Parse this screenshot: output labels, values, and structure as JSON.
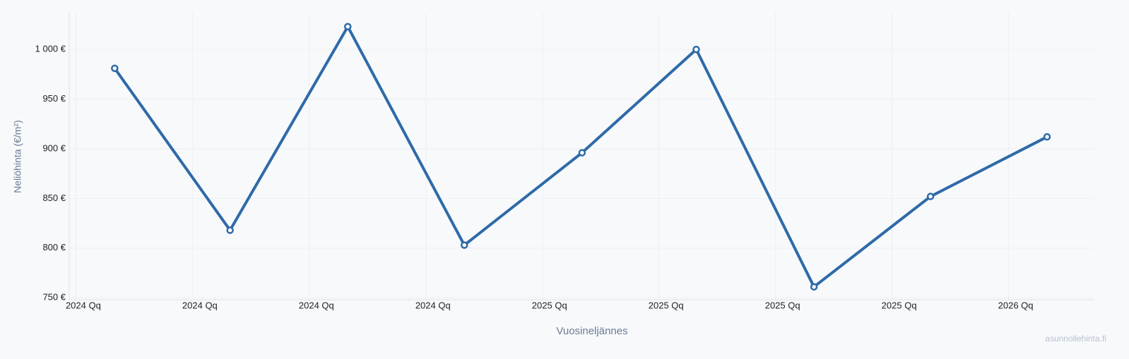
{
  "chart_data": {
    "type": "line",
    "x_label": "Vuosineljännes",
    "y_label": "Neliöhinta (€/m²)",
    "watermark": "asunnollehinta.fi",
    "x": [
      0.33,
      1.32,
      2.33,
      3.33,
      4.34,
      5.32,
      6.33,
      7.33,
      8.33
    ],
    "series": [
      {
        "color": "#2f6aa8",
        "values": [
          981,
          818,
          1023,
          803,
          896,
          1000,
          761,
          852,
          912
        ]
      }
    ],
    "xlim": [
      -0.06,
      8.73
    ],
    "xticks": [
      {
        "value": 0,
        "label": "2024 Qq"
      },
      {
        "value": 1,
        "label": "2024 Qq"
      },
      {
        "value": 2,
        "label": "2024 Qq"
      },
      {
        "value": 3,
        "label": "2024 Qq"
      },
      {
        "value": 4,
        "label": "2025 Qq"
      },
      {
        "value": 5,
        "label": "2025 Qq"
      },
      {
        "value": 6,
        "label": "2025 Qq"
      },
      {
        "value": 7,
        "label": "2025 Qq"
      },
      {
        "value": 8,
        "label": "2026 Qq"
      }
    ],
    "ylim": [
      748,
      1037
    ],
    "yticks": [
      {
        "value": 750,
        "label": "750 €"
      },
      {
        "value": 800,
        "label": "800 €"
      },
      {
        "value": 850,
        "label": "850 €"
      },
      {
        "value": 900,
        "label": "900 €"
      },
      {
        "value": 950,
        "label": "950 €"
      },
      {
        "value": 1000,
        "label": "1 000 €"
      }
    ],
    "grid": true
  }
}
